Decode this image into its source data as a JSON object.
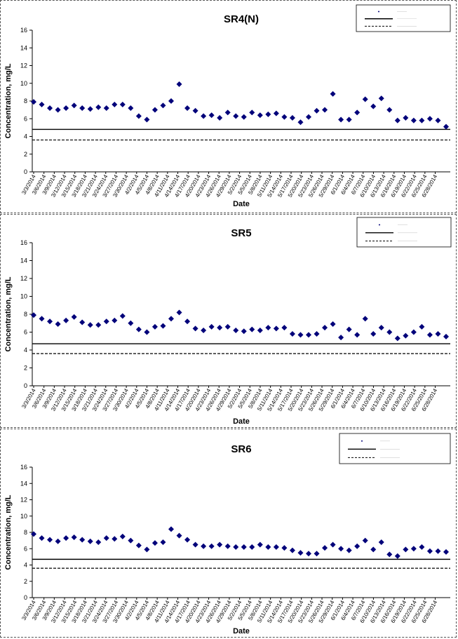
{
  "chart_data": [
    {
      "type": "scatter",
      "title": "SR4(N)",
      "xlabel": "Date",
      "ylabel": "Concentration, mg/L",
      "ylim": [
        0,
        16
      ],
      "yticks": [
        "0",
        "2",
        "4",
        "6",
        "8",
        "10",
        "12",
        "14",
        "16"
      ],
      "grid": false,
      "legend_position": "top-right",
      "marker_color": "#00007A",
      "line_color": "#000000",
      "x_tick_labels": [
        "3/3/2014",
        "3/6/2014",
        "3/9/2014",
        "3/12/2014",
        "3/15/2014",
        "3/18/2014",
        "3/21/2014",
        "3/24/2014",
        "3/27/2014",
        "3/30/2014",
        "4/2/2014",
        "4/5/2014",
        "4/8/2014",
        "4/11/2014",
        "4/14/2014",
        "4/17/2014",
        "4/20/2014",
        "4/23/2014",
        "4/26/2014",
        "4/29/2014",
        "5/2/2014",
        "5/5/2014",
        "5/8/2014",
        "5/11/2014",
        "5/14/2014",
        "5/17/2014",
        "5/20/2014",
        "5/23/2014",
        "5/26/2014",
        "5/29/2014",
        "6/1/2014",
        "6/4/2014",
        "6/7/2014",
        "6/10/2014",
        "6/13/2014",
        "6/16/2014",
        "6/19/2014",
        "6/22/2014",
        "6/25/2014",
        "6/28/2014"
      ],
      "reference_lines": [
        {
          "style": "solid",
          "y": 4.8
        },
        {
          "style": "dashed",
          "y": 3.6
        }
      ],
      "series": [
        {
          "values": [
            7.9,
            7.6,
            7.2,
            7.0,
            7.2,
            7.5,
            7.2,
            7.1,
            7.3,
            7.2,
            7.6,
            7.6,
            7.2,
            6.3,
            5.9,
            7.0,
            7.5,
            8.0,
            9.9,
            7.2,
            6.9,
            6.3,
            6.4,
            6.1,
            6.7,
            6.3,
            6.2,
            6.7,
            6.4,
            6.5,
            6.6,
            6.2,
            6.1,
            5.6,
            6.2,
            6.9,
            7.0,
            8.8,
            5.9,
            5.9,
            6.7,
            8.2,
            7.4,
            8.3,
            7.0,
            5.8,
            6.1,
            5.8,
            5.8,
            6.0,
            5.8,
            5.1
          ]
        }
      ]
    },
    {
      "type": "scatter",
      "title": "SR5",
      "xlabel": "Date",
      "ylabel": "Concentration, mg/L",
      "ylim": [
        0,
        16
      ],
      "yticks": [
        "0",
        "2",
        "4",
        "6",
        "8",
        "10",
        "12",
        "14",
        "16"
      ],
      "grid": false,
      "legend_position": "top-right",
      "marker_color": "#00007A",
      "line_color": "#000000",
      "x_tick_labels": [
        "3/3/2014",
        "3/6/2014",
        "3/9/2014",
        "3/12/2014",
        "3/15/2014",
        "3/18/2014",
        "3/21/2014",
        "3/24/2014",
        "3/27/2014",
        "3/30/2014",
        "4/2/2014",
        "4/5/2014",
        "4/8/2014",
        "4/11/2014",
        "4/14/2014",
        "4/17/2014",
        "4/20/2014",
        "4/23/2014",
        "4/26/2014",
        "4/29/2014",
        "5/2/2014",
        "5/5/2014",
        "5/8/2014",
        "5/11/2014",
        "5/14/2014",
        "5/17/2014",
        "5/20/2014",
        "5/23/2014",
        "5/26/2014",
        "5/29/2014",
        "6/1/2014",
        "6/4/2014",
        "6/7/2014",
        "6/10/2014",
        "6/13/2014",
        "6/16/2014",
        "6/19/2014",
        "6/22/2014",
        "6/25/2014",
        "6/28/2014"
      ],
      "reference_lines": [
        {
          "style": "solid",
          "y": 4.7
        },
        {
          "style": "dashed",
          "y": 3.6
        }
      ],
      "series": [
        {
          "values": [
            7.9,
            7.5,
            7.2,
            6.9,
            7.3,
            7.7,
            7.1,
            6.8,
            6.8,
            7.2,
            7.3,
            7.8,
            7.0,
            6.3,
            6.0,
            6.6,
            6.7,
            7.5,
            8.2,
            7.2,
            6.4,
            6.2,
            6.6,
            6.5,
            6.6,
            6.2,
            6.1,
            6.3,
            6.2,
            6.5,
            6.4,
            6.5,
            5.8,
            5.7,
            5.7,
            5.8,
            6.5,
            6.9,
            5.4,
            6.3,
            5.7,
            7.5,
            5.8,
            6.5,
            6.0,
            5.3,
            5.6,
            6.0,
            6.6,
            5.7,
            5.8,
            5.5
          ]
        }
      ]
    },
    {
      "type": "scatter",
      "title": "SR6",
      "xlabel": "Date",
      "ylabel": "Concentration, mg/L",
      "ylim": [
        0,
        16
      ],
      "yticks": [
        "0",
        "2",
        "4",
        "6",
        "8",
        "10",
        "12",
        "14",
        "16"
      ],
      "grid": false,
      "legend_position": "top-right",
      "marker_color": "#00007A",
      "line_color": "#000000",
      "x_tick_labels": [
        "3/3/2014",
        "3/6/2014",
        "3/9/2014",
        "3/12/2014",
        "3/15/2014",
        "3/18/2014",
        "3/21/2014",
        "3/24/2014",
        "3/27/2014",
        "3/30/2014",
        "4/2/2014",
        "4/5/2014",
        "4/8/2014",
        "4/11/2014",
        "4/14/2014",
        "4/17/2014",
        "4/20/2014",
        "4/23/2014",
        "4/26/2014",
        "4/29/2014",
        "5/2/2014",
        "5/5/2014",
        "5/8/2014",
        "5/11/2014",
        "5/14/2014",
        "5/17/2014",
        "5/20/2014",
        "5/23/2014",
        "5/26/2014",
        "5/29/2014",
        "6/1/2014",
        "6/4/2014",
        "6/7/2014",
        "6/10/2014",
        "6/13/2014",
        "6/16/2014",
        "6/19/2014",
        "6/22/2014",
        "6/25/2014",
        "6/28/2014"
      ],
      "reference_lines": [
        {
          "style": "solid",
          "y": 4.7
        },
        {
          "style": "dashed",
          "y": 3.6
        }
      ],
      "series": [
        {
          "values": [
            7.8,
            7.3,
            7.1,
            6.9,
            7.3,
            7.4,
            7.1,
            6.9,
            6.8,
            7.3,
            7.2,
            7.5,
            7.0,
            6.4,
            5.9,
            6.7,
            6.8,
            8.4,
            7.6,
            7.1,
            6.5,
            6.3,
            6.3,
            6.5,
            6.3,
            6.2,
            6.2,
            6.2,
            6.5,
            6.2,
            6.2,
            6.1,
            5.8,
            5.5,
            5.4,
            5.4,
            6.1,
            6.5,
            6.0,
            5.8,
            6.3,
            7.0,
            5.9,
            6.8,
            5.3,
            5.1,
            5.9,
            6.0,
            6.2,
            5.7,
            5.7,
            5.6
          ]
        }
      ]
    }
  ]
}
